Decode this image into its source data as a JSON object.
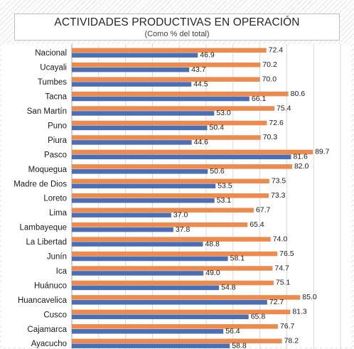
{
  "chart_data": {
    "type": "bar",
    "orientation": "horizontal",
    "title": "ACTIVIDADES PRODUCTIVAS EN OPERACIÓN",
    "subtitle": "(Como % del total)",
    "categories": [
      "Nacional",
      "Ucayali",
      "Tumbes",
      "Tacna",
      "San Martín",
      "Puno",
      "Piura",
      "Pasco",
      "Moquegua",
      "Madre de Dios",
      "Loreto",
      "Lima",
      "Lambayeque",
      "La Libertad",
      "Junín",
      "Ica",
      "Huánuco",
      "Huancavelica",
      "Cusco",
      "Cajamarca",
      "Ayacucho"
    ],
    "series": [
      {
        "values": [
          72.4,
          70.2,
          70.0,
          80.6,
          75.4,
          72.6,
          70.3,
          89.7,
          82.0,
          73.5,
          73.3,
          67.7,
          65.4,
          74.0,
          76.5,
          74.7,
          75.1,
          85.0,
          81.3,
          76.7,
          78.2
        ]
      },
      {
        "values": [
          46.9,
          43.7,
          44.5,
          66.1,
          53.0,
          50.4,
          44.6,
          81.6,
          50.6,
          53.5,
          53.1,
          37.0,
          37.8,
          48.8,
          58.1,
          49.0,
          54.8,
          72.7,
          65.8,
          56.4,
          58.8
        ]
      }
    ],
    "xlim": [
      0,
      100
    ],
    "grid": true,
    "colors": [
      "#ED8B4E",
      "#4A6FB5"
    ]
  }
}
